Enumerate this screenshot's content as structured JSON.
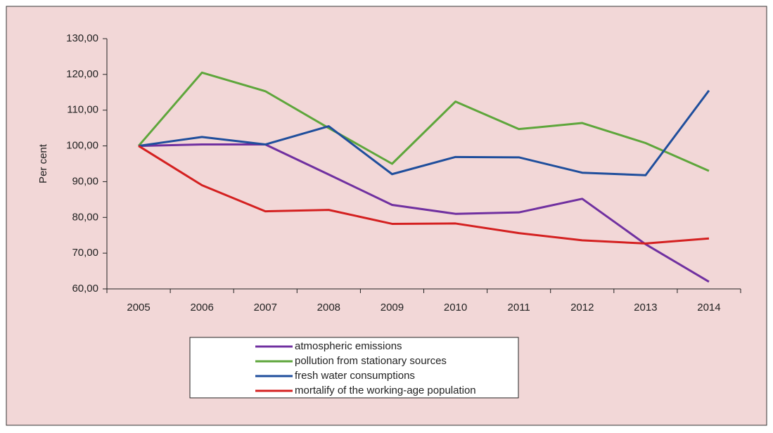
{
  "chart_data": {
    "type": "line",
    "y_label": "Per cent",
    "categories": [
      "2005",
      "2006",
      "2007",
      "2008",
      "2009",
      "2010",
      "2011",
      "2012",
      "2013",
      "2014"
    ],
    "series": [
      {
        "name": "atmospheric emissions",
        "color": "#7030a0",
        "values": [
          100,
          100.4,
          100.4,
          92,
          83.5,
          81,
          81.4,
          85.2,
          72.5,
          62
        ]
      },
      {
        "name": "pollution from stationary sources",
        "color": "#5ea63b",
        "values": [
          100,
          120.5,
          115.3,
          105,
          95,
          112.4,
          104.7,
          106.4,
          100.8,
          93
        ]
      },
      {
        "name": "fresh water consumptions",
        "color": "#1f4e9c",
        "values": [
          100,
          102.5,
          100.4,
          105.5,
          92.1,
          96.9,
          96.8,
          92.5,
          91.8,
          115.5
        ]
      },
      {
        "name": "mortalify of the working-age population",
        "color": "#d42020",
        "values": [
          100,
          89,
          81.7,
          82.1,
          78.2,
          78.3,
          75.6,
          73.6,
          72.7,
          74.1
        ]
      }
    ],
    "ylim": [
      60,
      130
    ],
    "yticks": [
      {
        "value": 60,
        "label": "60,00"
      },
      {
        "value": 70,
        "label": "70,00"
      },
      {
        "value": 80,
        "label": "80,00"
      },
      {
        "value": 90,
        "label": "90,00"
      },
      {
        "value": 100,
        "label": "100,00"
      },
      {
        "value": 110,
        "label": "110,00"
      },
      {
        "value": 120,
        "label": "120,00"
      },
      {
        "value": 130,
        "label": "130,00"
      }
    ],
    "legend": "bottom"
  }
}
